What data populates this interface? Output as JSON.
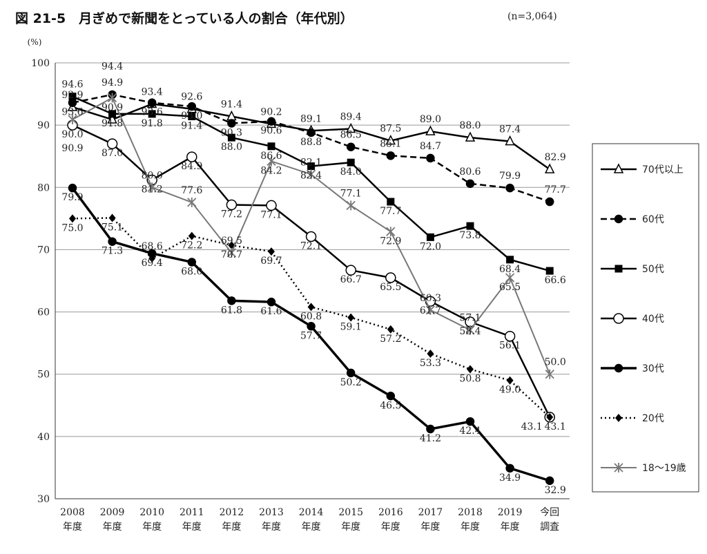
{
  "title": "図 21-5　月ぎめで新聞をとっている人の割合（年代別）",
  "sample": "(n=3,064)",
  "chart_data": {
    "type": "line",
    "ylabel": "(%)",
    "ylim": [
      30,
      100
    ],
    "yticks": [
      30,
      40,
      50,
      60,
      70,
      80,
      90,
      100
    ],
    "grid": true,
    "legend_position": "right",
    "categories": [
      [
        "2008",
        "年度"
      ],
      [
        "2009",
        "年度"
      ],
      [
        "2010",
        "年度"
      ],
      [
        "2011",
        "年度"
      ],
      [
        "2012",
        "年度"
      ],
      [
        "2013",
        "年度"
      ],
      [
        "2014",
        "年度"
      ],
      [
        "2015",
        "年度"
      ],
      [
        "2016",
        "年度"
      ],
      [
        "2017",
        "年度"
      ],
      [
        "2018",
        "年度"
      ],
      [
        "2019",
        "年度"
      ],
      [
        "今回",
        "調査"
      ]
    ],
    "series": [
      {
        "name": "70代以上",
        "marker": "triangle-open",
        "style": "solid",
        "color": "#000000",
        "values": [
          92.9,
          90.9,
          93.4,
          92.6,
          91.4,
          90.2,
          89.1,
          89.4,
          87.5,
          89.0,
          88.0,
          87.4,
          82.9
        ]
      },
      {
        "name": "60代",
        "marker": "circle-filled",
        "style": "dashed",
        "color": "#000000",
        "values": [
          93.6,
          94.9,
          93.6,
          93.0,
          90.3,
          90.6,
          88.8,
          86.5,
          85.1,
          84.7,
          80.6,
          79.9,
          77.7
        ]
      },
      {
        "name": "50代",
        "marker": "square-filled",
        "style": "solid",
        "color": "#000000",
        "values": [
          94.6,
          91.8,
          91.8,
          91.4,
          88.0,
          86.6,
          83.4,
          84.0,
          77.7,
          72.0,
          73.8,
          68.4,
          66.6
        ]
      },
      {
        "name": "40代",
        "marker": "circle-open",
        "style": "solid",
        "color": "#000000",
        "values": [
          90.0,
          87.0,
          81.2,
          84.9,
          77.2,
          77.1,
          72.1,
          66.7,
          65.5,
          61.7,
          58.4,
          56.1,
          43.1
        ]
      },
      {
        "name": "30代",
        "marker": "circle-filled",
        "style": "thick",
        "color": "#000000",
        "values": [
          79.9,
          71.3,
          69.4,
          68.0,
          61.8,
          61.6,
          57.7,
          50.2,
          46.5,
          41.2,
          42.4,
          34.9,
          32.9
        ]
      },
      {
        "name": "20代",
        "marker": "diamond-filled",
        "style": "dotted",
        "color": "#000000",
        "values": [
          75.0,
          75.1,
          68.6,
          72.2,
          70.7,
          69.7,
          60.8,
          59.1,
          57.2,
          53.3,
          50.8,
          49.0,
          43.1
        ]
      },
      {
        "name": "18～19歳",
        "marker": "star",
        "style": "solid",
        "color": "#777777",
        "values": [
          90.9,
          94.4,
          80.0,
          77.6,
          69.5,
          84.2,
          82.1,
          77.1,
          72.9,
          60.3,
          57.1,
          65.5,
          50.0
        ]
      }
    ]
  }
}
